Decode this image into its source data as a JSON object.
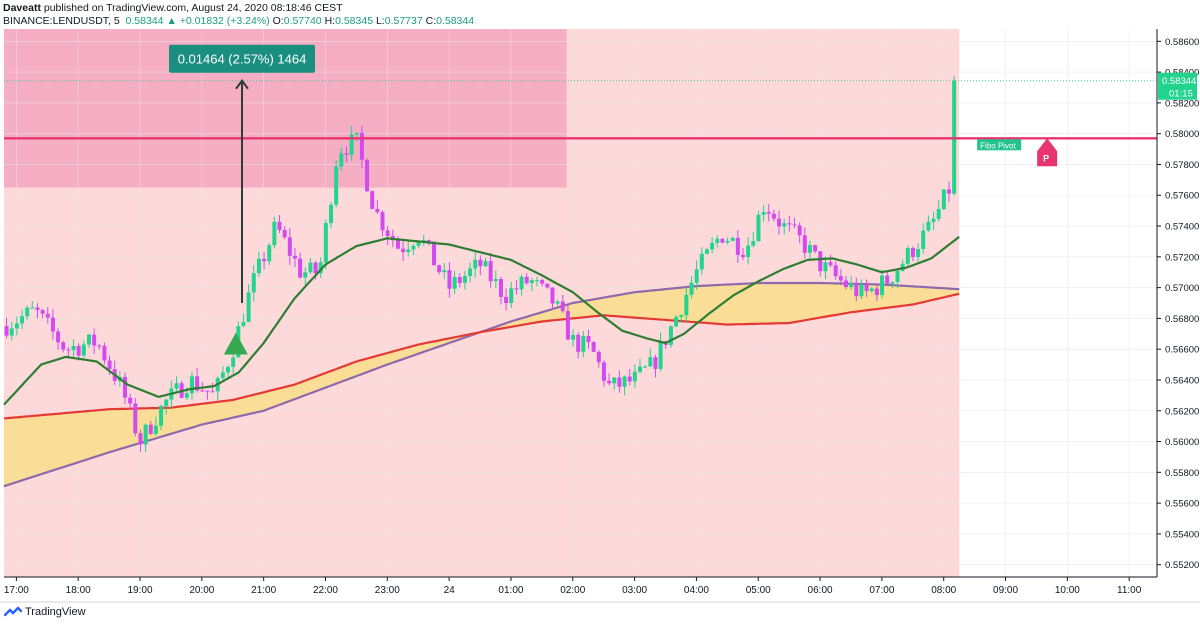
{
  "header": {
    "author": "Daveatt",
    "published": "published on TradingView.com, August 24, 2020 08:18:46 CEST",
    "symbol": "BINANCE:LENDUSDT, 5",
    "last": "0.58344",
    "change": "+0.01832 (+3.24%)",
    "o_label": "O:",
    "o": "0.57740",
    "h_label": "H:",
    "h": "0.58345",
    "l_label": "L:",
    "l": "0.57737",
    "c_label": "C:",
    "c": "0.58344"
  },
  "footer": {
    "brand": "TradingView",
    "logo_icon": "tradingview-logo-icon"
  },
  "annotations": {
    "measure_label": "0.01464 (2.57%) 1464",
    "pivot_label": "Fibo Pivot",
    "pivot_marker": "P",
    "price_tag": "0.58344",
    "countdown": "01:15"
  },
  "colors": {
    "up": "#22d48e",
    "down": "#d44af0",
    "shade_light": "#fdd9da",
    "shade_dark": "#f5aec4",
    "pivot_line": "#e8346f",
    "fast_ma": "#2e7d32",
    "slow_ma_red": "#e53935",
    "slow_ma_purple": "#8e6aac",
    "cloud": "#f9dd8a",
    "measure_bg": "#1a8f80"
  },
  "chart_data": {
    "type": "candlestick",
    "y_ticks": [
      "0.55200",
      "0.55400",
      "0.55600",
      "0.55800",
      "0.56000",
      "0.56200",
      "0.56400",
      "0.56600",
      "0.56800",
      "0.57000",
      "0.57200",
      "0.57400",
      "0.57600",
      "0.57800",
      "0.58000",
      "0.58200",
      "0.58400",
      "0.58600"
    ],
    "ylim": [
      0.5512,
      0.5868
    ],
    "x_ticks": [
      "17:00",
      "18:00",
      "19:00",
      "20:00",
      "21:00",
      "22:00",
      "23:00",
      "24",
      "01:00",
      "02:00",
      "03:00",
      "04:00",
      "05:00",
      "06:00",
      "07:00",
      "08:00",
      "09:00",
      "10:00",
      "11:00"
    ],
    "x_tick_hours": [
      0,
      1,
      2,
      3,
      4,
      5,
      6,
      7,
      8,
      9,
      10,
      11,
      12,
      13,
      14,
      15,
      16,
      17,
      18
    ],
    "xlim_hours": [
      -0.2,
      18.45
    ],
    "last_candle_hours": 15.25,
    "pivot_level": 0.5797,
    "resistance_zone": {
      "start_hours": -0.2,
      "end_hours": 8.9,
      "top": 0.5868,
      "bottom": 0.5765
    },
    "session_shade_end_hours": 15.25,
    "measure": {
      "at_hours": 3.65,
      "from": 0.569,
      "to": 0.58344
    },
    "buy_signal": {
      "at_hours": 3.55,
      "price": 0.5663
    },
    "fast_ma_key": [
      [
        -0.2,
        0.5624
      ],
      [
        0.4,
        0.565
      ],
      [
        0.8,
        0.5655
      ],
      [
        1.3,
        0.5652
      ],
      [
        1.8,
        0.5637
      ],
      [
        2.3,
        0.5629
      ],
      [
        2.8,
        0.5634
      ],
      [
        3.2,
        0.5636
      ],
      [
        3.6,
        0.5645
      ],
      [
        4.0,
        0.5664
      ],
      [
        4.5,
        0.5693
      ],
      [
        5.0,
        0.5715
      ],
      [
        5.5,
        0.5727
      ],
      [
        6.0,
        0.5732
      ],
      [
        6.5,
        0.573
      ],
      [
        7.0,
        0.5728
      ],
      [
        7.5,
        0.5723
      ],
      [
        8.0,
        0.5718
      ],
      [
        8.5,
        0.5708
      ],
      [
        9.0,
        0.5697
      ],
      [
        9.4,
        0.5684
      ],
      [
        9.8,
        0.5672
      ],
      [
        10.2,
        0.5667
      ],
      [
        10.5,
        0.5664
      ],
      [
        10.8,
        0.567
      ],
      [
        11.2,
        0.5683
      ],
      [
        11.6,
        0.5695
      ],
      [
        12.0,
        0.5704
      ],
      [
        12.4,
        0.5712
      ],
      [
        12.8,
        0.5718
      ],
      [
        13.2,
        0.5719
      ],
      [
        13.6,
        0.5715
      ],
      [
        14.0,
        0.571
      ],
      [
        14.4,
        0.5713
      ],
      [
        14.8,
        0.5719
      ],
      [
        15.25,
        0.5733
      ]
    ],
    "slow_red_key": [
      [
        -0.2,
        0.5615
      ],
      [
        1.5,
        0.5621
      ],
      [
        2.5,
        0.5622
      ],
      [
        3.5,
        0.5627
      ],
      [
        4.5,
        0.5637
      ],
      [
        5.5,
        0.5652
      ],
      [
        6.5,
        0.5663
      ],
      [
        7.5,
        0.5671
      ],
      [
        8.5,
        0.5678
      ],
      [
        9.5,
        0.5682
      ],
      [
        10.5,
        0.5679
      ],
      [
        11.5,
        0.5676
      ],
      [
        12.5,
        0.5677
      ],
      [
        13.5,
        0.5684
      ],
      [
        14.5,
        0.5689
      ],
      [
        15.25,
        0.5696
      ]
    ],
    "slow_purple_key": [
      [
        -0.2,
        0.5571
      ],
      [
        1.5,
        0.5593
      ],
      [
        3.0,
        0.5611
      ],
      [
        4.0,
        0.562
      ],
      [
        5.0,
        0.5635
      ],
      [
        6.0,
        0.565
      ],
      [
        7.0,
        0.5664
      ],
      [
        8.0,
        0.5678
      ],
      [
        9.0,
        0.569
      ],
      [
        10.0,
        0.5697
      ],
      [
        11.0,
        0.5701
      ],
      [
        12.0,
        0.5703
      ],
      [
        13.0,
        0.5703
      ],
      [
        14.0,
        0.5702
      ],
      [
        15.25,
        0.5699
      ]
    ],
    "price_path_key": [
      [
        -0.2,
        0.5675
      ],
      [
        0.3,
        0.5685
      ],
      [
        0.8,
        0.566
      ],
      [
        1.3,
        0.5665
      ],
      [
        1.7,
        0.5635
      ],
      [
        2.0,
        0.56
      ],
      [
        2.4,
        0.5625
      ],
      [
        2.8,
        0.564
      ],
      [
        3.2,
        0.563
      ],
      [
        3.5,
        0.566
      ],
      [
        3.8,
        0.57
      ],
      [
        4.2,
        0.574
      ],
      [
        4.6,
        0.571
      ],
      [
        4.9,
        0.571
      ],
      [
        5.2,
        0.579
      ],
      [
        5.5,
        0.5795
      ],
      [
        5.8,
        0.575
      ],
      [
        6.2,
        0.5725
      ],
      [
        6.5,
        0.5735
      ],
      [
        7.0,
        0.57
      ],
      [
        7.5,
        0.5715
      ],
      [
        7.9,
        0.5695
      ],
      [
        8.3,
        0.5705
      ],
      [
        8.7,
        0.569
      ],
      [
        9.0,
        0.5665
      ],
      [
        9.3,
        0.566
      ],
      [
        9.6,
        0.5635
      ],
      [
        10.0,
        0.564
      ],
      [
        10.3,
        0.565
      ],
      [
        10.6,
        0.5675
      ],
      [
        11.0,
        0.571
      ],
      [
        11.4,
        0.5735
      ],
      [
        11.8,
        0.5725
      ],
      [
        12.1,
        0.5755
      ],
      [
        12.4,
        0.574
      ],
      [
        12.7,
        0.573
      ],
      [
        13.0,
        0.5715
      ],
      [
        13.3,
        0.5705
      ],
      [
        13.7,
        0.5695
      ],
      [
        14.1,
        0.5705
      ],
      [
        14.4,
        0.572
      ],
      [
        14.8,
        0.574
      ],
      [
        15.1,
        0.5765
      ],
      [
        15.25,
        0.58344
      ]
    ]
  }
}
